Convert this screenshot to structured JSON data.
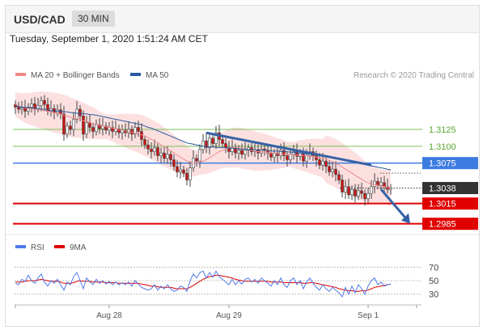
{
  "header": {
    "symbol": "USD/CAD",
    "timeframe": "30 MIN"
  },
  "datetime": "Tuesday, September 1, 2020 1:51:24 AM CET",
  "legend": {
    "ma_bb": "MA 20 + Bollinger Bands",
    "ma50": "MA 50",
    "credit": "Research © 2020 Trading Central"
  },
  "rsi_legend": {
    "rsi": "RSI",
    "ma": "9MA"
  },
  "colors": {
    "bb_fill": "#fbd5d5",
    "ma20": "#f08a8a",
    "ma50": "#2a5aa0",
    "up": "#ffffff",
    "down": "#cc1111",
    "green_level": "#7cbf5a",
    "blue_level": "#3d7be0",
    "red_level": "#e00000",
    "current": "#333333",
    "rsi": "#4f7ae8",
    "rsi_ma": "#e00000"
  },
  "chart_data": {
    "type": "candlestick",
    "x_labels": [
      "Aug 28",
      "Aug 29",
      "Sep 1"
    ],
    "price_range": [
      1.2975,
      1.3185
    ],
    "levels": [
      {
        "value": 1.3125,
        "label": "1.3125",
        "style": "green"
      },
      {
        "value": 1.31,
        "label": "1.3100",
        "style": "green"
      },
      {
        "value": 1.3075,
        "label": "1.3075",
        "style": "blue"
      },
      {
        "value": 1.3038,
        "label": "1.3038",
        "style": "current"
      },
      {
        "value": 1.3015,
        "label": "1.3015",
        "style": "red"
      },
      {
        "value": 1.2985,
        "label": "1.2985",
        "style": "red"
      }
    ],
    "closes": [
      1.3158,
      1.3155,
      1.3157,
      1.3152,
      1.3158,
      1.3163,
      1.3156,
      1.316,
      1.3168,
      1.3162,
      1.3152,
      1.3156,
      1.315,
      1.3154,
      1.3148,
      1.3118,
      1.313,
      1.3125,
      1.314,
      1.3155,
      1.3145,
      1.3118,
      1.3135,
      1.3128,
      1.3122,
      1.3132,
      1.3126,
      1.313,
      1.3124,
      1.3128,
      1.3122,
      1.3126,
      1.312,
      1.3124,
      1.312,
      1.3125,
      1.3118,
      1.3128,
      1.3122,
      1.311,
      1.3102,
      1.3096,
      1.3092,
      1.3098,
      1.3086,
      1.309,
      1.3082,
      1.3088,
      1.308,
      1.307,
      1.3062,
      1.3065,
      1.306,
      1.305,
      1.3068,
      1.3082,
      1.3078,
      1.3095,
      1.3108,
      1.3098,
      1.3112,
      1.3104,
      1.312,
      1.311,
      1.3104,
      1.3098,
      1.3092,
      1.3098,
      1.309,
      1.3094,
      1.3088,
      1.3094,
      1.3098,
      1.3092,
      1.3095,
      1.309,
      1.3096,
      1.3094,
      1.309,
      1.3084,
      1.309,
      1.3086,
      1.3094,
      1.3086,
      1.308,
      1.3088,
      1.3092,
      1.3085,
      1.309,
      1.3078,
      1.3086,
      1.3092,
      1.3086,
      1.308,
      1.3072,
      1.3078,
      1.307,
      1.3062,
      1.3066,
      1.3058,
      1.305,
      1.3032,
      1.304,
      1.3028,
      1.3036,
      1.3026,
      1.3034,
      1.303,
      1.3022,
      1.303,
      1.304,
      1.3048,
      1.3042,
      1.3046,
      1.304,
      1.3036,
      1.3038
    ],
    "ma20": [
      1.3162,
      1.316,
      1.3158,
      1.3157,
      1.3156,
      1.3155,
      1.3155,
      1.3154,
      1.3154,
      1.3153,
      1.3152,
      1.3151,
      1.315,
      1.3149,
      1.3148,
      1.3146,
      1.3145,
      1.3143,
      1.3142,
      1.3141,
      1.314,
      1.3138,
      1.3137,
      1.3135,
      1.3134,
      1.3133,
      1.3131,
      1.313,
      1.3129,
      1.3128,
      1.3127,
      1.3126,
      1.3125,
      1.3124,
      1.3123,
      1.3122,
      1.3121,
      1.312,
      1.3119,
      1.3117,
      1.3115,
      1.3113,
      1.311,
      1.3108,
      1.3105,
      1.3102,
      1.3099,
      1.3096,
      1.3093,
      1.309,
      1.3087,
      1.3084,
      1.3081,
      1.3078,
      1.3076,
      1.3075,
      1.3075,
      1.3076,
      1.3078,
      1.308,
      1.3083,
      1.3086,
      1.3089,
      1.3092,
      1.3094,
      1.3096,
      1.3097,
      1.3098,
      1.3098,
      1.3098,
      1.3097,
      1.3096,
      1.3095,
      1.3094,
      1.3093,
      1.3092,
      1.3092,
      1.3091,
      1.3091,
      1.309,
      1.309,
      1.3089,
      1.3089,
      1.3088,
      1.3088,
      1.3088,
      1.3087,
      1.3087,
      1.3087,
      1.3086,
      1.3086,
      1.3085,
      1.3085,
      1.3084,
      1.3083,
      1.3082,
      1.3081,
      1.3079,
      1.3077,
      1.3075,
      1.3072,
      1.3069,
      1.3066,
      1.3063,
      1.306,
      1.3057,
      1.3054,
      1.3051,
      1.3048,
      1.3046,
      1.3044,
      1.3043,
      1.3042,
      1.3041,
      1.304,
      1.3039,
      1.3039
    ],
    "ma50": [
      1.316,
      1.3159,
      1.3158,
      1.3158,
      1.3157,
      1.3157,
      1.3156,
      1.3156,
      1.3155,
      1.3155,
      1.3154,
      1.3153,
      1.3153,
      1.3152,
      1.3152,
      1.3151,
      1.3151,
      1.315,
      1.315,
      1.3149,
      1.3149,
      1.3148,
      1.3148,
      1.3147,
      1.3147,
      1.3146,
      1.3145,
      1.3144,
      1.3143,
      1.3142,
      1.3141,
      1.314,
      1.3139,
      1.3138,
      1.3137,
      1.3136,
      1.3135,
      1.3134,
      1.3133,
      1.3132,
      1.313,
      1.3128,
      1.3127,
      1.3125,
      1.3123,
      1.3121,
      1.3119,
      1.3117,
      1.3115,
      1.3113,
      1.3111,
      1.3109,
      1.3107,
      1.3105,
      1.3104,
      1.3103,
      1.3102,
      1.3101,
      1.31,
      1.31,
      1.3099,
      1.3099,
      1.3099,
      1.3098,
      1.3098,
      1.3098,
      1.3097,
      1.3097,
      1.3097,
      1.3096,
      1.3096,
      1.3096,
      1.3095,
      1.3095,
      1.3095,
      1.3094,
      1.3094,
      1.3094,
      1.3094,
      1.3093,
      1.3093,
      1.3093,
      1.3092,
      1.3092,
      1.3092,
      1.3091,
      1.3091,
      1.309,
      1.309,
      1.3089,
      1.3089,
      1.3088,
      1.3088,
      1.3087,
      1.3086,
      1.3086,
      1.3085,
      1.3084,
      1.3083,
      1.3082,
      1.3081,
      1.308,
      1.3079,
      1.3078,
      1.3077,
      1.3076,
      1.3075,
      1.3074,
      1.3073,
      1.3072,
      1.3071,
      1.307,
      1.3069,
      1.3068,
      1.3067,
      1.3066,
      1.3065
    ],
    "trendline": [
      {
        "i": 59,
        "v": 1.312
      },
      {
        "i": 110,
        "v": 1.3072
      }
    ],
    "projection_arrow": [
      {
        "i": 113,
        "v": 1.3036
      },
      {
        "i": 122,
        "v": 1.2985
      }
    ],
    "rsi": {
      "levels": [
        70,
        50,
        30
      ],
      "range": [
        20,
        80
      ],
      "rsi": [
        46,
        44,
        52,
        49,
        58,
        50,
        46,
        54,
        60,
        48,
        42,
        50,
        46,
        52,
        44,
        36,
        48,
        44,
        56,
        62,
        50,
        38,
        54,
        48,
        44,
        52,
        46,
        50,
        45,
        49,
        44,
        48,
        44,
        47,
        44,
        48,
        42,
        50,
        45,
        40,
        38,
        36,
        38,
        44,
        36,
        42,
        38,
        44,
        38,
        34,
        36,
        42,
        40,
        34,
        50,
        60,
        54,
        62,
        64,
        54,
        62,
        55,
        64,
        56,
        52,
        48,
        44,
        52,
        44,
        50,
        45,
        52,
        54,
        48,
        52,
        46,
        54,
        50,
        46,
        42,
        50,
        44,
        54,
        44,
        40,
        50,
        54,
        44,
        50,
        38,
        48,
        54,
        46,
        40,
        36,
        44,
        38,
        34,
        40,
        36,
        32,
        26,
        40,
        30,
        42,
        32,
        44,
        38,
        30,
        42,
        50,
        54,
        44,
        48,
        42,
        44,
        45
      ],
      "ma9": [
        48,
        48,
        48,
        49,
        50,
        50,
        50,
        51,
        52,
        51,
        50,
        49,
        49,
        49,
        48,
        46,
        46,
        46,
        47,
        49,
        50,
        49,
        49,
        49,
        48,
        48,
        48,
        48,
        47,
        47,
        47,
        47,
        46,
        46,
        46,
        46,
        46,
        46,
        46,
        45,
        44,
        43,
        42,
        42,
        41,
        40,
        40,
        40,
        40,
        39,
        38,
        38,
        38,
        38,
        40,
        43,
        46,
        49,
        52,
        54,
        56,
        57,
        58,
        58,
        57,
        56,
        55,
        54,
        52,
        51,
        50,
        49,
        49,
        49,
        49,
        49,
        49,
        49,
        49,
        48,
        48,
        48,
        48,
        47,
        47,
        47,
        47,
        47,
        47,
        46,
        46,
        47,
        47,
        46,
        45,
        44,
        43,
        42,
        41,
        40,
        38,
        37,
        36,
        35,
        35,
        34,
        34,
        35,
        35,
        36,
        38,
        40,
        41,
        42,
        43,
        44,
        45
      ]
    }
  }
}
